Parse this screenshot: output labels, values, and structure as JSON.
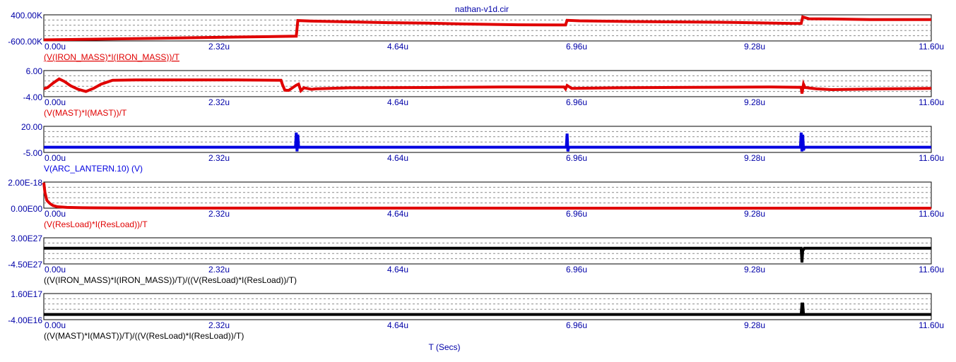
{
  "title": "nathan-v1d.cir",
  "x_axis_title": "T (Secs)",
  "x_tick_labels": [
    "0.00u",
    "2.32u",
    "4.64u",
    "6.96u",
    "9.28u",
    "11.60u"
  ],
  "colors": {
    "axis_text": "#0000a8",
    "red": "#e00000",
    "blue": "#0000e0",
    "black": "#000000"
  },
  "chart_data": [
    {
      "type": "line",
      "expression": "(V(IRON_MASS)*I(IRON_MASS))/T",
      "expression_underlined": true,
      "color": "#e00000",
      "y_top_label": "400.00K",
      "y_bottom_label": "-600.00K",
      "ylim": [
        -600000,
        400000
      ],
      "xlim": [
        0,
        11.6
      ],
      "x_unit": "us",
      "x": [
        0,
        0.5,
        1.5,
        2.5,
        3.3,
        3.32,
        3.5,
        4,
        4.5,
        5,
        5.5,
        6.2,
        6.82,
        6.84,
        7.0,
        7.5,
        8.2,
        9.0,
        9.8,
        9.9,
        9.92,
        10.0,
        10.3,
        10.8,
        11.6
      ],
      "y": [
        -560000,
        -540000,
        -500000,
        -450000,
        -420000,
        180000,
        160000,
        130000,
        100000,
        80000,
        50000,
        20000,
        10000,
        190000,
        170000,
        150000,
        130000,
        110000,
        70000,
        70000,
        320000,
        250000,
        240000,
        220000,
        220000
      ]
    },
    {
      "type": "line",
      "expression": "(V(MAST)*I(MAST))/T",
      "expression_underlined": false,
      "color": "#e00000",
      "y_top_label": "6.00",
      "y_bottom_label": "-4.00",
      "ylim": [
        -4,
        6
      ],
      "xlim": [
        0,
        11.6
      ],
      "x_unit": "us",
      "x": [
        0,
        0.05,
        0.12,
        0.2,
        0.27,
        0.35,
        0.45,
        0.55,
        0.65,
        0.75,
        0.9,
        1.2,
        1.8,
        2.5,
        3.1,
        3.12,
        3.15,
        3.2,
        3.3,
        3.33,
        3.36,
        3.4,
        3.5,
        3.55,
        4,
        5,
        6,
        6.8,
        6.82,
        6.84,
        6.9,
        7.5,
        8.5,
        9.5,
        9.9,
        9.91,
        9.93,
        9.95,
        10.1,
        10.3,
        11.0,
        11.6
      ],
      "y": [
        -1.0,
        -0.5,
        1.2,
        2.8,
        1.8,
        0.2,
        -1.2,
        -2.0,
        -0.8,
        0.8,
        2.3,
        2.4,
        2.4,
        2.4,
        2.3,
        0.6,
        -1.5,
        -1.6,
        0.4,
        0.8,
        -1.7,
        -0.6,
        -1.2,
        -1.0,
        -0.6,
        -0.5,
        -0.3,
        -0.3,
        -1.0,
        0.3,
        -0.8,
        -0.6,
        -0.4,
        -0.3,
        -0.4,
        -2.8,
        0.8,
        -0.5,
        -1.0,
        -1.3,
        -1.0,
        -0.8
      ]
    },
    {
      "type": "line",
      "expression": "V(ARC_LANTERN.10) (V)",
      "expression_underlined": false,
      "color": "#0000e0",
      "y_top_label": "20.00",
      "y_bottom_label": "-5.00",
      "ylim": [
        -5,
        20
      ],
      "xlim": [
        0,
        11.6
      ],
      "x_unit": "us",
      "x": [
        0,
        3.29,
        3.3,
        3.31,
        3.32,
        3.33,
        6.83,
        6.84,
        6.85,
        6.86,
        9.89,
        9.9,
        9.91,
        9.92,
        9.93,
        9.94,
        11.6
      ],
      "y": [
        0,
        0,
        14,
        -4,
        12,
        0,
        0,
        13,
        -4,
        0,
        0,
        14,
        -4,
        12,
        -3,
        0,
        0
      ]
    },
    {
      "type": "line",
      "expression": "(V(ResLoad)*I(ResLoad))/T",
      "expression_underlined": false,
      "color": "#e00000",
      "y_top_label": "2.00E-18",
      "y_bottom_label": "0.00E00",
      "ylim": [
        0,
        2e-18
      ],
      "xlim": [
        0,
        11.6
      ],
      "x_unit": "us",
      "x": [
        0,
        0.015,
        0.04,
        0.08,
        0.12,
        0.18,
        0.3,
        0.5,
        1.0,
        2.0,
        11.6
      ],
      "y": [
        1.95e-18,
        1.2e-18,
        6e-19,
        3.5e-19,
        2e-19,
        1.1e-19,
        6e-20,
        3e-20,
        1.5e-20,
        5e-21,
        0
      ]
    },
    {
      "type": "line",
      "expression": "((V(IRON_MASS)*I(IRON_MASS))/T)/((V(ResLoad)*I(ResLoad))/T)",
      "expression_underlined": false,
      "color": "#000000",
      "y_top_label": "3.00E27",
      "y_bottom_label": "-4.50E27",
      "ylim": [
        -4.5e+27,
        3e+27
      ],
      "xlim": [
        0,
        11.6
      ],
      "x_unit": "us",
      "x": [
        0,
        9.9,
        9.91,
        9.92,
        9.93,
        9.94,
        11.6
      ],
      "y": [
        0,
        0,
        -4.1e+27,
        -5e+26,
        -4e+26,
        0,
        0
      ]
    },
    {
      "type": "line",
      "expression": "((V(MAST)*I(MAST))/T)/((V(ResLoad)*I(ResLoad))/T)",
      "expression_underlined": false,
      "color": "#000000",
      "y_top_label": "1.60E17",
      "y_bottom_label": "-4.00E16",
      "ylim": [
        -4e+16,
        1.6e+17
      ],
      "xlim": [
        0,
        11.6
      ],
      "x_unit": "us",
      "x": [
        0,
        9.9,
        9.91,
        9.92,
        9.93,
        11.6
      ],
      "y": [
        0,
        0,
        8e+16,
        8e+16,
        0,
        0
      ]
    }
  ]
}
